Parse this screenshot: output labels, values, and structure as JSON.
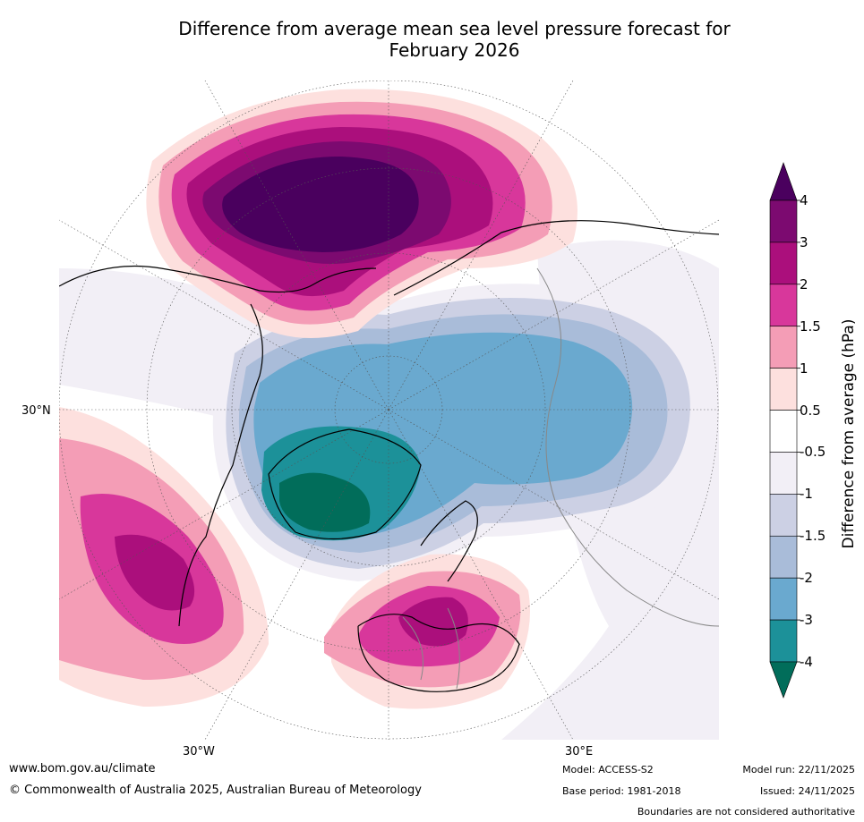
{
  "title": {
    "line1": "Difference from average mean sea level pressure forecast for",
    "line2": "February 2026"
  },
  "map": {
    "projection": "north polar stereographic",
    "axis_labels": {
      "lat_30n": "30°N",
      "lon_30w": "30°W",
      "lon_30e": "30°E"
    },
    "anomaly_regions": [
      {
        "region": "North Pacific / Aleutians",
        "max_anomaly_hpa": 4,
        "sign": "positive"
      },
      {
        "region": "Subtropical North Atlantic (west of Azores)",
        "max_anomaly_hpa": 3,
        "sign": "positive"
      },
      {
        "region": "Western and Central Europe",
        "max_anomaly_hpa": 3,
        "sign": "positive"
      },
      {
        "region": "Arctic / Greenland / Iceland",
        "min_anomaly_hpa": -4,
        "sign": "negative"
      },
      {
        "region": "Northern Russia / Siberia",
        "min_anomaly_hpa": -2,
        "sign": "negative"
      }
    ]
  },
  "colorbar": {
    "title": "Difference from average (hPa)",
    "tick_labels": [
      "4",
      "3",
      "2",
      "1.5",
      "1",
      "0.5",
      "-0.5",
      "-1",
      "-1.5",
      "-2",
      "-3",
      "-4"
    ],
    "band_colors": [
      "#4a005e",
      "#7c0a70",
      "#ab0f7c",
      "#d8379b",
      "#f49db6",
      "#fde0de",
      "#ffffff",
      "#f2eff6",
      "#ccd0e4",
      "#a9bcd9",
      "#6aa9cf",
      "#1c9199",
      "#016d5a"
    ]
  },
  "colors": {
    "pos4": "#4a005e",
    "pos3": "#7c0a70",
    "pos2": "#ab0f7c",
    "pos15": "#d8379b",
    "pos1": "#f49db6",
    "pos05": "#fde0de",
    "neutral": "#ffffff",
    "neg05": "#f2eff6",
    "neg1": "#ccd0e4",
    "neg15": "#a9bcd9",
    "neg2": "#6aa9cf",
    "neg3": "#1c9199",
    "neg4": "#016d5a"
  },
  "footer": {
    "website": "www.bom.gov.au/climate",
    "copyright": "© Commonwealth of Australia 2025, Australian Bureau of Meteorology",
    "model": "Model: ACCESS-S2",
    "base_period": "Base period: 1981-2018",
    "model_run": "Model run: 22/11/2025",
    "issued": "Issued: 24/11/2025",
    "disclaimer": "Boundaries are not considered authoritative"
  }
}
